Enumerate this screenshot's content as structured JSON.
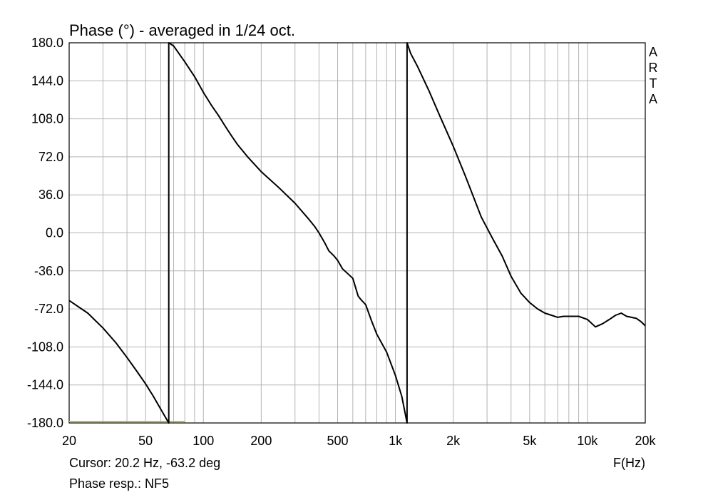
{
  "chart_data": {
    "type": "line",
    "title": "Phase (°) - averaged in 1/24 oct.",
    "xlabel": "F(Hz)",
    "ylabel": "",
    "x_scale": "log",
    "xlim": [
      20,
      20000
    ],
    "ylim": [
      -180,
      180
    ],
    "y_ticks": [
      {
        "value": 180,
        "label": "180.0"
      },
      {
        "value": 144,
        "label": "144.0"
      },
      {
        "value": 108,
        "label": "108.0"
      },
      {
        "value": 72,
        "label": "72.0"
      },
      {
        "value": 36,
        "label": "36.0"
      },
      {
        "value": 0,
        "label": "0.0"
      },
      {
        "value": -36,
        "label": "-36.0"
      },
      {
        "value": -72,
        "label": "-72.0"
      },
      {
        "value": -108,
        "label": "-108.0"
      },
      {
        "value": -144,
        "label": "-144.0"
      },
      {
        "value": -180,
        "label": "-180.0"
      }
    ],
    "x_ticks": [
      {
        "value": 20,
        "label": "20"
      },
      {
        "value": 50,
        "label": "50"
      },
      {
        "value": 100,
        "label": "100"
      },
      {
        "value": 200,
        "label": "200"
      },
      {
        "value": 500,
        "label": "500"
      },
      {
        "value": 1000,
        "label": "1k"
      },
      {
        "value": 2000,
        "label": "2k"
      },
      {
        "value": 5000,
        "label": "5k"
      },
      {
        "value": 10000,
        "label": "10k"
      },
      {
        "value": 20000,
        "label": "20k"
      }
    ],
    "grid": true,
    "series": [
      {
        "name": "NF5",
        "color": "#000000",
        "points": [
          [
            20,
            -64
          ],
          [
            25,
            -76
          ],
          [
            30,
            -90
          ],
          [
            35,
            -104
          ],
          [
            40,
            -118
          ],
          [
            45,
            -131
          ],
          [
            50,
            -143
          ],
          [
            55,
            -155
          ],
          [
            60,
            -167
          ],
          [
            66,
            -180
          ],
          [
            66,
            180
          ],
          [
            70,
            177
          ],
          [
            80,
            162
          ],
          [
            90,
            148
          ],
          [
            100,
            133
          ],
          [
            110,
            121
          ],
          [
            120,
            111
          ],
          [
            130,
            101
          ],
          [
            140,
            92
          ],
          [
            150,
            84
          ],
          [
            170,
            72
          ],
          [
            200,
            58
          ],
          [
            250,
            42
          ],
          [
            300,
            28
          ],
          [
            350,
            14
          ],
          [
            380,
            6
          ],
          [
            400,
            0
          ],
          [
            430,
            -10
          ],
          [
            450,
            -17
          ],
          [
            480,
            -22
          ],
          [
            500,
            -26
          ],
          [
            530,
            -34
          ],
          [
            560,
            -38
          ],
          [
            600,
            -43
          ],
          [
            640,
            -60
          ],
          [
            660,
            -63
          ],
          [
            700,
            -68
          ],
          [
            750,
            -83
          ],
          [
            800,
            -96
          ],
          [
            900,
            -113
          ],
          [
            1000,
            -135
          ],
          [
            1080,
            -155
          ],
          [
            1150,
            -180
          ],
          [
            1150,
            180
          ],
          [
            1200,
            170
          ],
          [
            1300,
            158
          ],
          [
            1500,
            134
          ],
          [
            1700,
            111
          ],
          [
            2000,
            82
          ],
          [
            2300,
            55
          ],
          [
            2500,
            38
          ],
          [
            2800,
            15
          ],
          [
            3200,
            -5
          ],
          [
            3600,
            -22
          ],
          [
            4000,
            -41
          ],
          [
            4500,
            -57
          ],
          [
            5000,
            -66
          ],
          [
            5500,
            -72
          ],
          [
            6000,
            -76
          ],
          [
            6500,
            -78
          ],
          [
            7000,
            -80
          ],
          [
            7500,
            -79
          ],
          [
            8000,
            -79
          ],
          [
            9000,
            -79
          ],
          [
            10000,
            -82
          ],
          [
            11000,
            -89
          ],
          [
            12000,
            -86
          ],
          [
            13000,
            -82
          ],
          [
            14000,
            -78
          ],
          [
            15000,
            -76
          ],
          [
            16000,
            -79
          ],
          [
            18000,
            -81
          ],
          [
            19000,
            -84
          ],
          [
            20000,
            -88
          ]
        ]
      }
    ],
    "cursor": {
      "color": "#c8c800",
      "x": 20,
      "y": -180,
      "x_end": 80
    },
    "watermark": "ARTA",
    "cursor_text": "Cursor: 20.2 Hz, -63.2 deg",
    "legend_text": "Phase resp.: NF5"
  }
}
